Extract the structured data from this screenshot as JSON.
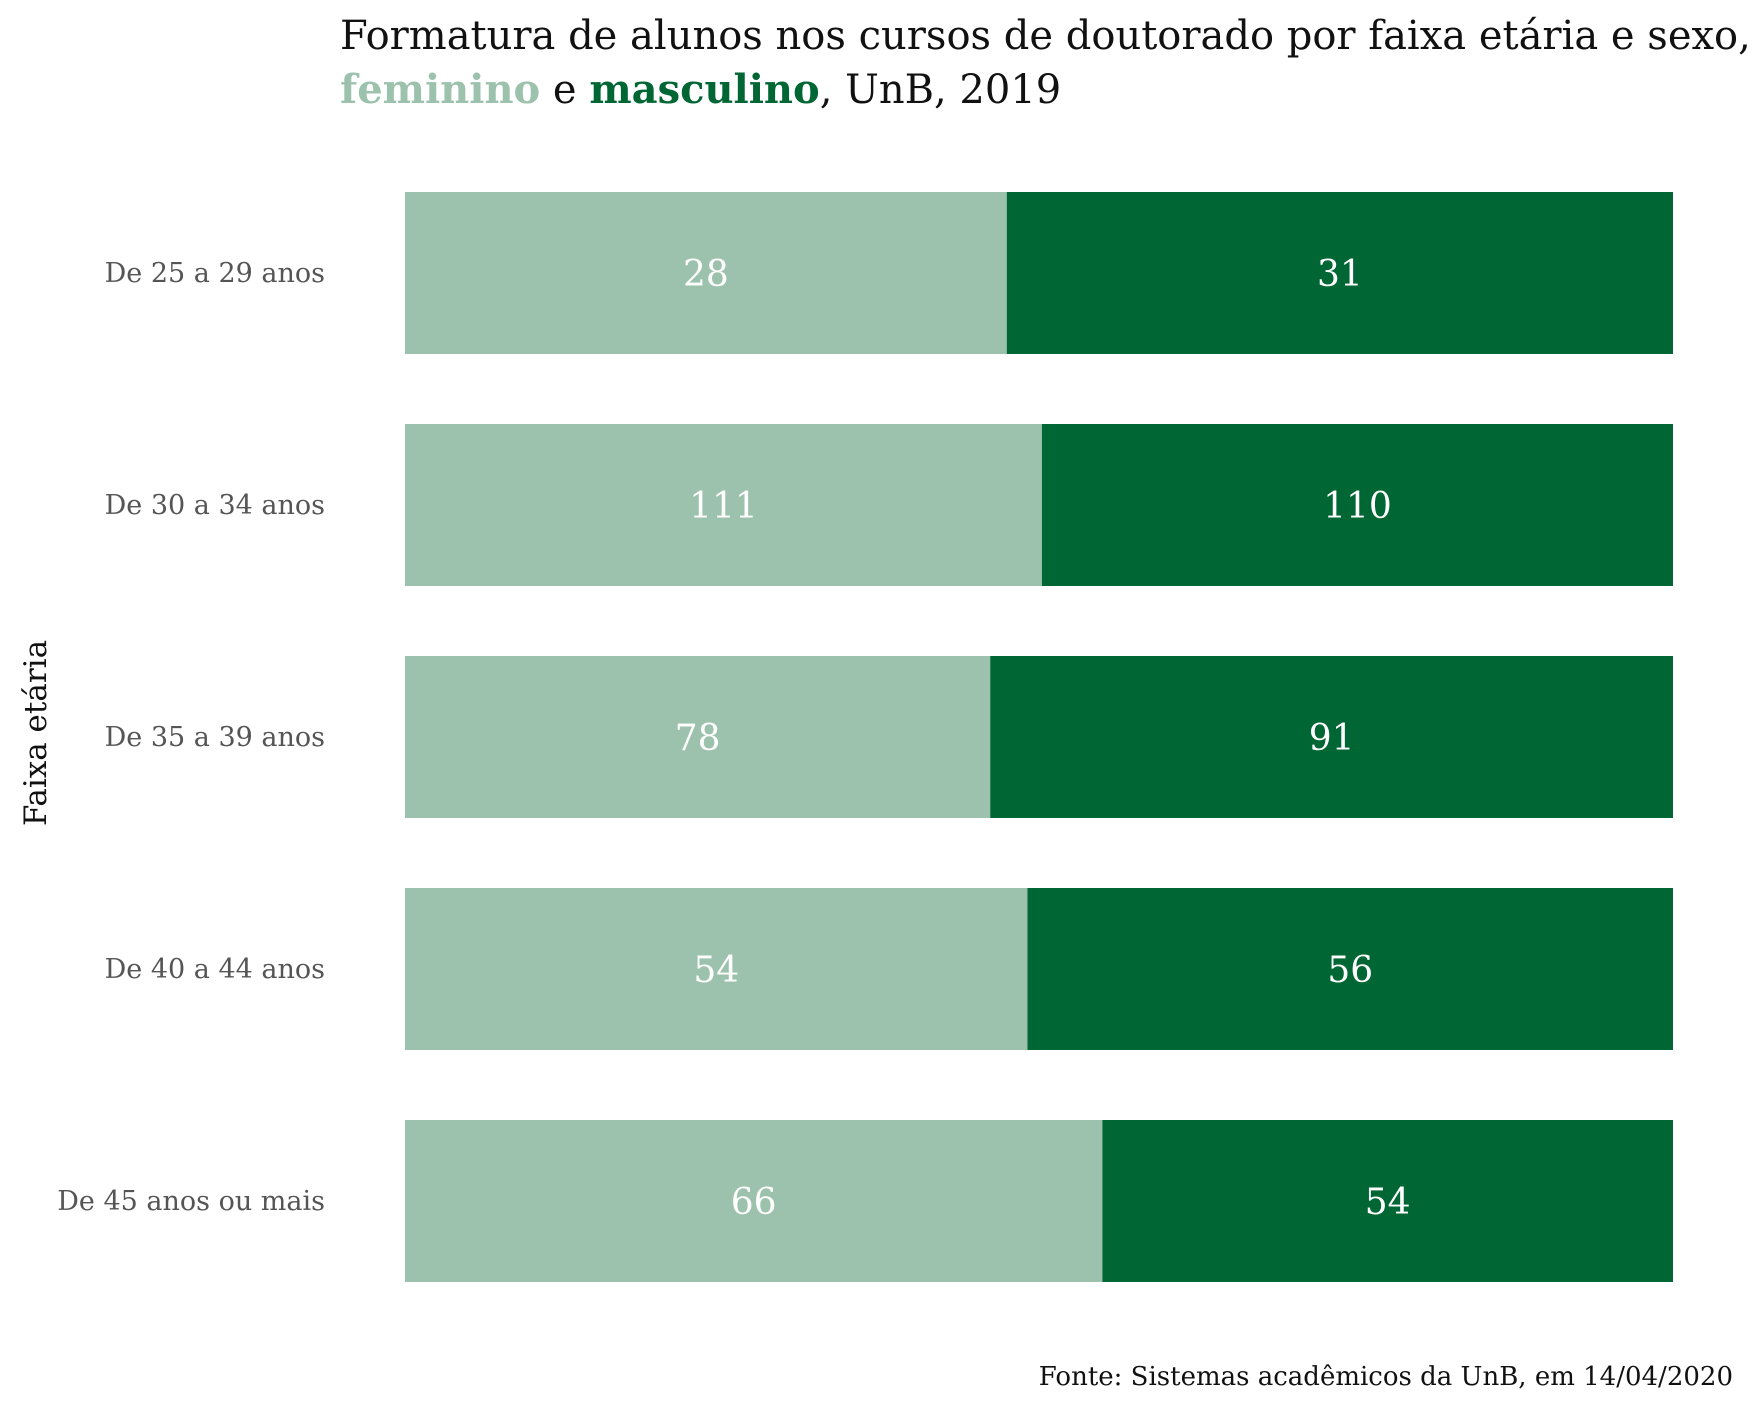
{
  "chart_data": {
    "type": "bar",
    "orientation": "horizontal",
    "stacking": "percent",
    "title": {
      "line1": "Formatura de alunos nos cursos de doutorado por faixa etária e sexo,",
      "line2_feminino": "feminino",
      "line2_e": " e ",
      "line2_masculino": "masculino",
      "line2_rest": ", UnB, 2019"
    },
    "ylabel": "Faixa etária",
    "xlabel": "",
    "caption": "Fonte: Sistemas acadêmicos da UnB, em 14/04/2020",
    "categories": [
      "De 25 a 29 anos",
      "De 30 a 34 anos",
      "De 35 a 39 anos",
      "De 40 a 44 anos",
      "De 45 anos ou mais"
    ],
    "series": [
      {
        "name": "feminino",
        "color": "#9cc2ad",
        "values": [
          28,
          111,
          78,
          54,
          66
        ]
      },
      {
        "name": "masculino",
        "color": "#006633",
        "values": [
          31,
          110,
          91,
          56,
          54
        ]
      }
    ],
    "grid": false,
    "legend": "none"
  }
}
